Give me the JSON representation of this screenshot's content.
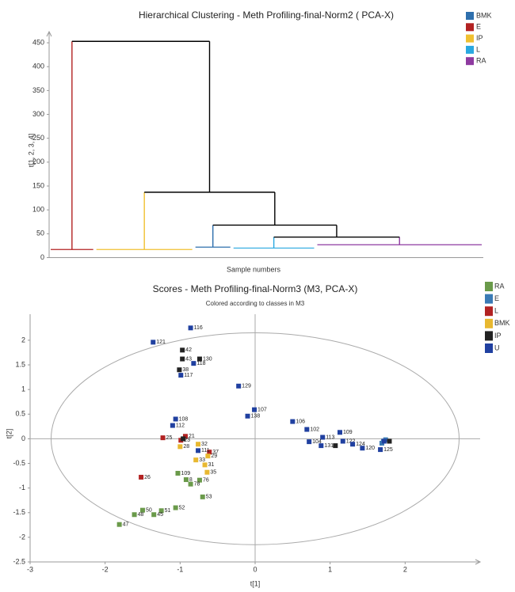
{
  "chart_data": [
    {
      "type": "dendrogram",
      "title": "Hierarchical Clustering - Meth Profiling-final-Norm2 ( PCA-X)",
      "ylabel": "t[1, 2, 3, 4]",
      "xlabel": "Sample numbers",
      "ylim": [
        0,
        470
      ],
      "yticks": [
        0,
        50,
        100,
        150,
        200,
        250,
        300,
        350,
        400,
        450
      ],
      "series": [
        {
          "name": "BMK",
          "color": "#2e6fad"
        },
        {
          "name": "E",
          "color": "#b22222"
        },
        {
          "name": "IP",
          "color": "#f0c030"
        },
        {
          "name": "L",
          "color": "#29a8e0"
        },
        {
          "name": "RA",
          "color": "#8e3aa0"
        }
      ],
      "clusters": [
        {
          "series": 1,
          "leaves": 12,
          "height": 17
        },
        {
          "series": 2,
          "leaves": 26,
          "height": 17
        },
        {
          "series": 0,
          "leaves": 10,
          "height": 22
        },
        {
          "series": 3,
          "leaves": 22,
          "height": 20
        },
        {
          "series": 4,
          "leaves": 44,
          "height": 27
        }
      ],
      "tree": {
        "height": 453,
        "children": [
          {
            "cluster": 0
          },
          {
            "height": 137,
            "children": [
              {
                "cluster": 1
              },
              {
                "height": 68,
                "children": [
                  {
                    "cluster": 2
                  },
                  {
                    "height": 43,
                    "children": [
                      {
                        "cluster": 3
                      },
                      {
                        "cluster": 4
                      }
                    ]
                  }
                ]
              }
            ]
          }
        ]
      }
    },
    {
      "type": "scatter",
      "title": "Scores - Meth Profiling-final-Norm3 (M3, PCA-X)",
      "subtitle": "Colored according to classes in M3",
      "xlabel": "t[1]",
      "ylabel": "t[2]",
      "xlim": [
        -3,
        3
      ],
      "ylim": [
        -2.5,
        2.4
      ],
      "xticks": [
        -3,
        -2,
        -1,
        0,
        1,
        2
      ],
      "yticks": [
        -2.5,
        -2,
        -1.5,
        -1,
        -0.5,
        0,
        0.5,
        1,
        1.5,
        2
      ],
      "ellipse": {
        "rx": 2.72,
        "ry": 2.15
      },
      "series": [
        {
          "name": "RA",
          "color": "#6a9a4a",
          "x": [
            -1.03,
            -0.92,
            -0.74,
            -0.86,
            -0.7,
            -1.06,
            -1.25,
            -1.5,
            -1.61,
            -1.35,
            -1.81
          ],
          "y": [
            -0.7,
            -0.83,
            -0.84,
            -0.92,
            -1.18,
            -1.4,
            -1.46,
            -1.45,
            -1.54,
            -1.54,
            -1.74
          ],
          "labels": [
            "109",
            "8",
            "76",
            "78",
            "53",
            "52",
            "51",
            "50",
            "48",
            "45",
            "47"
          ]
        },
        {
          "name": "E",
          "color": "#3a7ab5",
          "x": [
            1.71,
            1.74,
            1.69
          ],
          "y": [
            -0.05,
            -0.02,
            -0.09
          ],
          "labels": [
            null,
            null,
            null
          ]
        },
        {
          "name": "L",
          "color": "#b22222",
          "x": [
            -1.23,
            -0.93,
            -0.99,
            -1.52,
            -0.61
          ],
          "y": [
            0.02,
            0.05,
            -0.03,
            -0.78,
            -0.27
          ],
          "labels": [
            "25",
            "21",
            "23",
            "26",
            "37"
          ]
        },
        {
          "name": "BMK",
          "color": "#e8b830",
          "x": [
            -1.0,
            -0.76,
            -0.79,
            -0.67,
            -0.64,
            -0.63
          ],
          "y": [
            -0.16,
            -0.11,
            -0.43,
            -0.53,
            -0.68,
            -0.35
          ],
          "labels": [
            "28",
            "32",
            "33",
            "31",
            "35",
            "29"
          ]
        },
        {
          "name": "IP",
          "color": "#222222",
          "x": [
            -0.97,
            -0.97,
            -0.74,
            -1.01,
            1.79,
            1.07,
            -0.96
          ],
          "y": [
            1.8,
            1.62,
            1.62,
            1.4,
            -0.05,
            -0.14,
            0.0
          ],
          "labels": [
            "42",
            "43",
            "130",
            "38",
            null,
            null,
            null
          ]
        },
        {
          "name": "U",
          "color": "#2040a0",
          "x": [
            -0.86,
            -1.36,
            -0.99,
            -0.22,
            -0.01,
            -0.1,
            -1.06,
            -1.1,
            0.5,
            0.69,
            1.13,
            0.9,
            0.88,
            0.72,
            1.17,
            1.3,
            1.43,
            1.67,
            -0.76,
            -0.82,
            1.72
          ],
          "y": [
            2.25,
            1.96,
            1.29,
            1.07,
            0.59,
            0.46,
            0.4,
            0.27,
            0.35,
            0.19,
            0.13,
            0.03,
            -0.14,
            -0.06,
            -0.05,
            -0.11,
            -0.19,
            -0.22,
            -0.24,
            1.53,
            -0.05
          ],
          "labels": [
            "116",
            "121",
            "117",
            "129",
            "107",
            "138",
            "108",
            "112",
            "106",
            "102",
            "109",
            "113",
            "131",
            "104",
            "122",
            "124",
            "120",
            "125",
            "111",
            "118",
            null
          ]
        }
      ]
    }
  ]
}
